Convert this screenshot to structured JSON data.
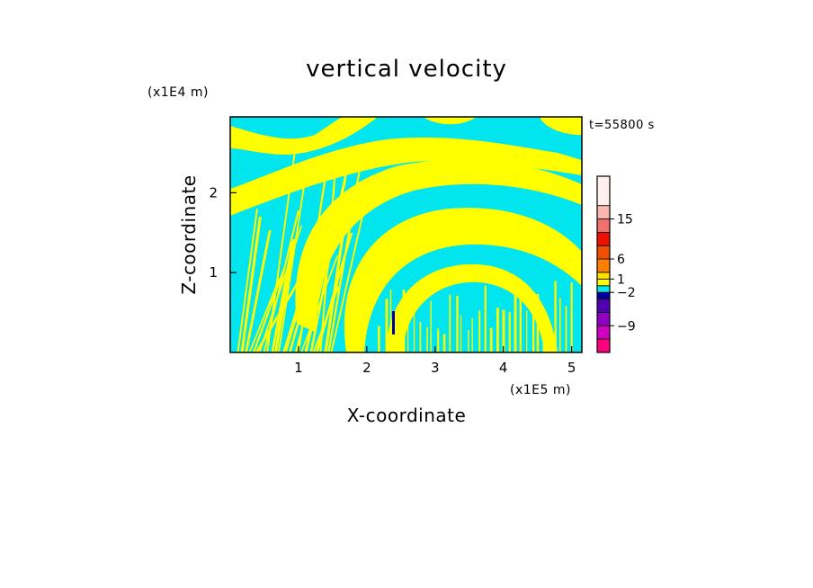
{
  "chart_data": {
    "type": "heatmap",
    "title": "vertical velocity",
    "xlabel": "X-coordinate",
    "ylabel": "Z-coordinate",
    "x_multiplier": "(x1E5 m)",
    "y_multiplier": "(x1E4 m)",
    "time_label": "t=55800 s",
    "xlim": [
      0,
      5.15
    ],
    "ylim": [
      0,
      2.95
    ],
    "x_ticks": [
      {
        "value": 1,
        "label": "1"
      },
      {
        "value": 2,
        "label": "2"
      },
      {
        "value": 3,
        "label": "3"
      },
      {
        "value": 4,
        "label": "4"
      },
      {
        "value": 5,
        "label": "5"
      }
    ],
    "y_ticks": [
      {
        "value": 1,
        "label": "1"
      },
      {
        "value": 2,
        "label": "2"
      }
    ],
    "background_color": "#00e5ee",
    "dominant_colors": {
      "positive_small": "#ffff00",
      "negative_small": "#00e5ee"
    },
    "colorbar": {
      "levels": [
        {
          "color": "#ff0080"
        },
        {
          "color": "#d000c0"
        },
        {
          "color": "#9000c0"
        },
        {
          "color": "#5000b0"
        },
        {
          "color": "#0000a0"
        },
        {
          "color": "#00e5ee"
        },
        {
          "color": "#ffff00"
        },
        {
          "color": "#ffe000"
        },
        {
          "color": "#ff8000"
        },
        {
          "color": "#ee5000"
        },
        {
          "color": "#ee1000"
        },
        {
          "color": "#f07070"
        },
        {
          "color": "#f8b8b0"
        },
        {
          "color": "#fff0ee"
        }
      ],
      "tick_labels": [
        {
          "label": "15"
        },
        {
          "label": "6"
        },
        {
          "label": "1"
        },
        {
          "label": "−2"
        },
        {
          "label": "−9"
        }
      ]
    }
  }
}
